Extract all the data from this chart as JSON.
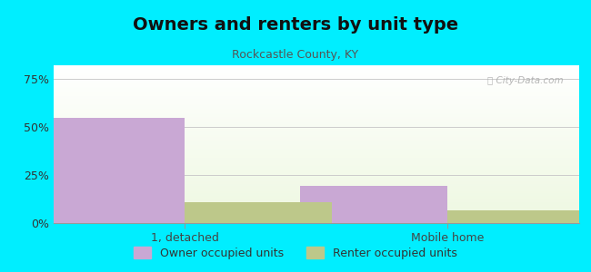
{
  "title": "Owners and renters by unit type",
  "subtitle": "Rockcastle County, KY",
  "categories": [
    "1, detached",
    "Mobile home"
  ],
  "owner_values": [
    54.5,
    19.5
  ],
  "renter_values": [
    11.0,
    6.5
  ],
  "owner_color": "#c9a8d4",
  "renter_color": "#bdc88a",
  "yticks": [
    0,
    25,
    50,
    75
  ],
  "ylim": [
    0,
    82
  ],
  "outer_bg": "#00eeff",
  "watermark": "Ⓢ City-Data.com",
  "bar_width": 0.28,
  "legend_owner": "Owner occupied units",
  "legend_renter": "Renter occupied units",
  "title_fontsize": 14,
  "subtitle_fontsize": 9
}
